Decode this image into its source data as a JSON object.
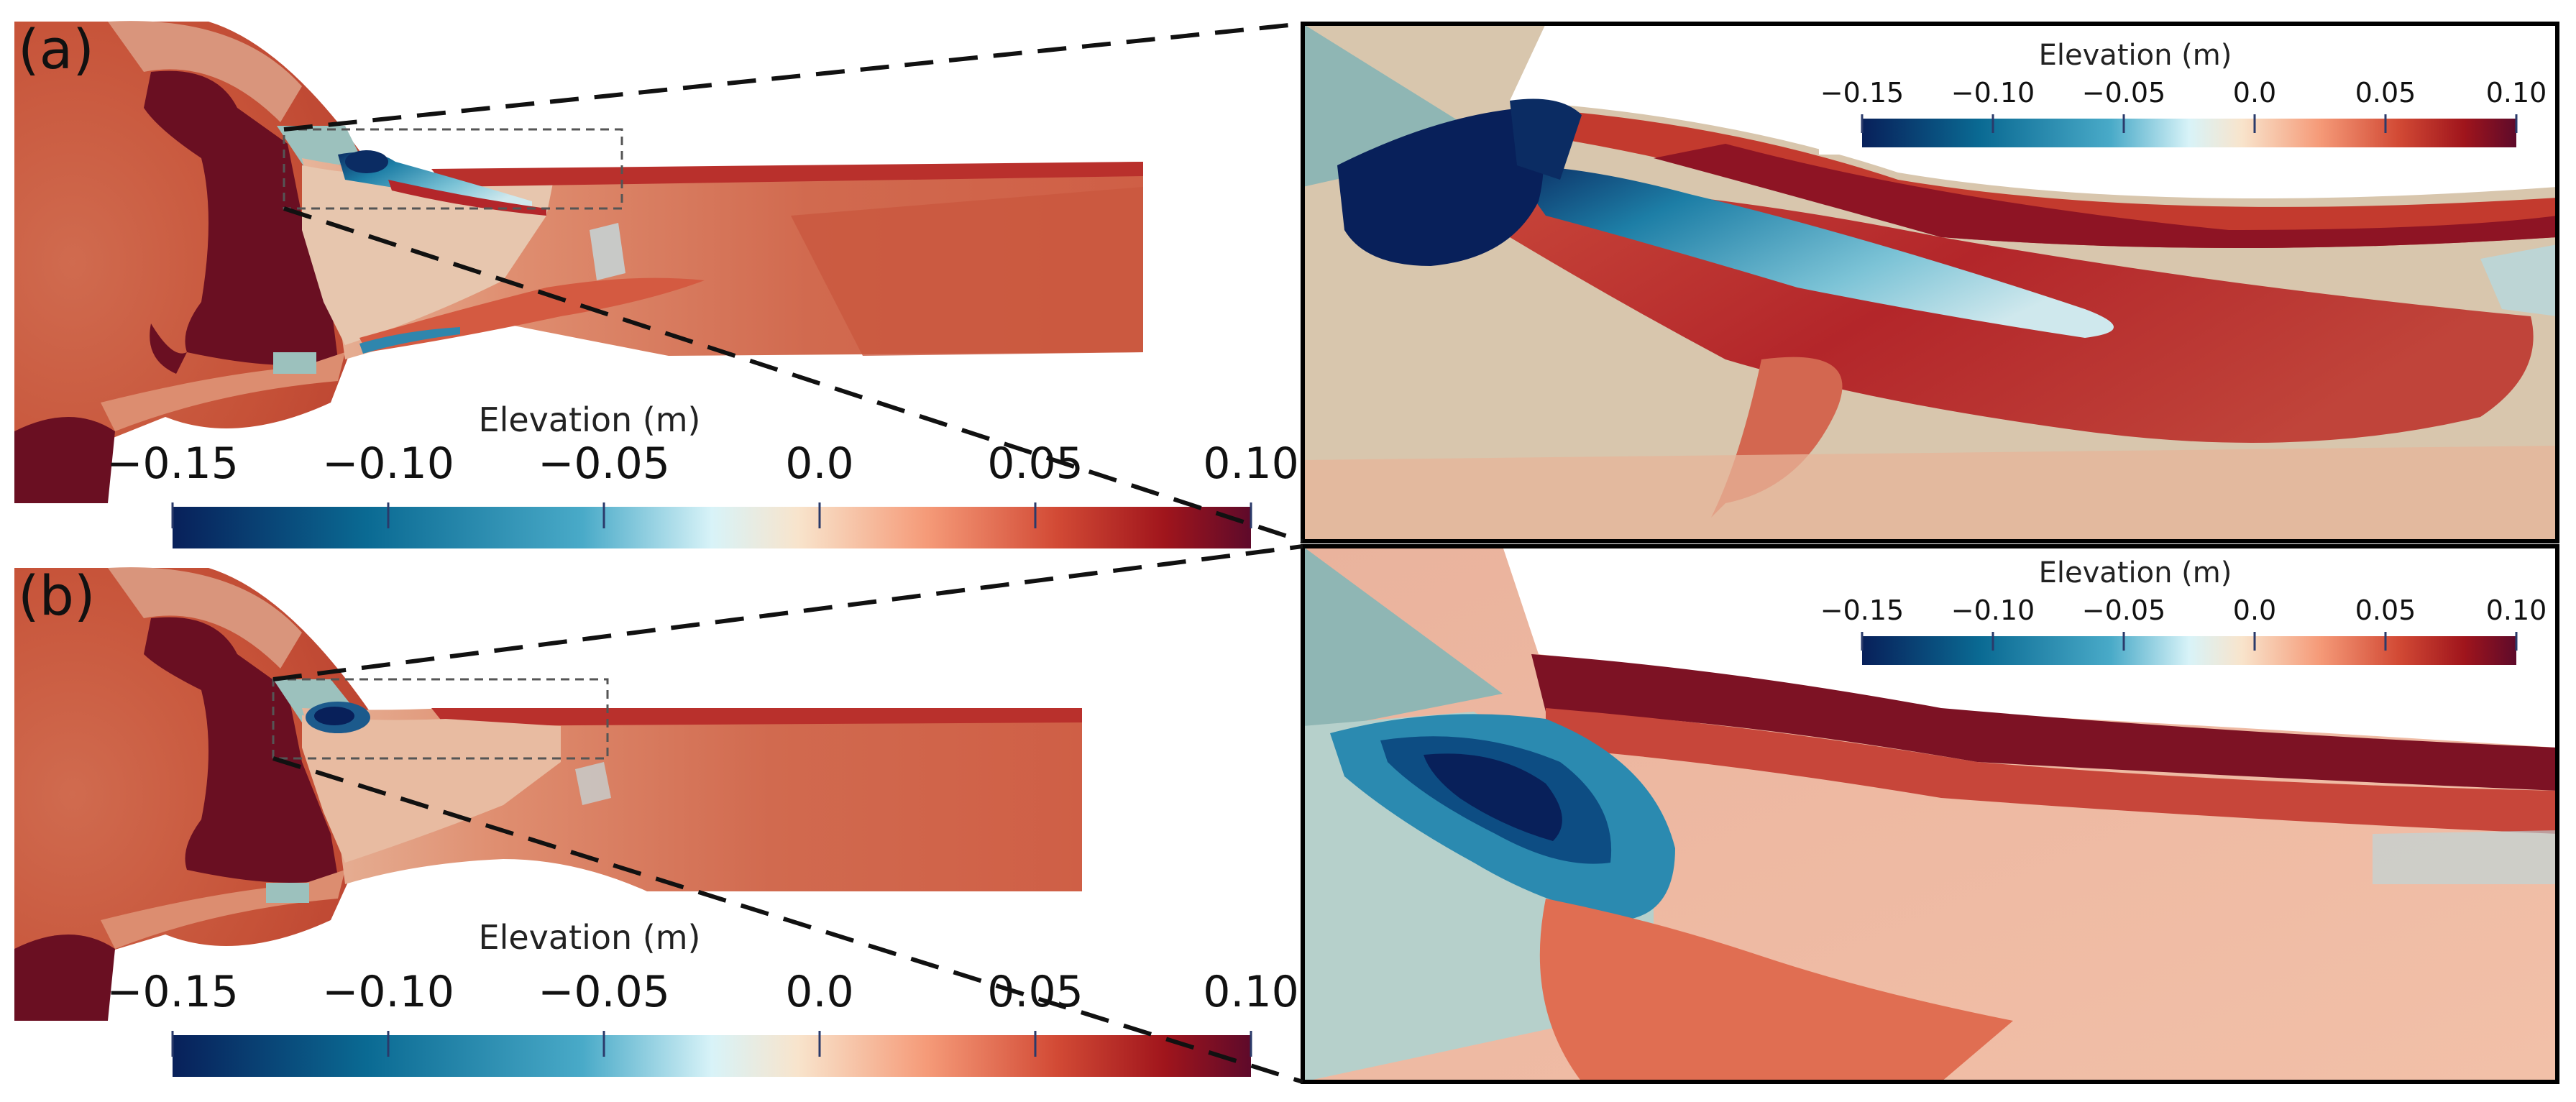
{
  "figure": {
    "panels": [
      {
        "id": "a",
        "label": "(a)"
      },
      {
        "id": "b",
        "label": "(b)"
      }
    ],
    "colorbar": {
      "title": "Elevation (m)",
      "ticks": [
        "−0.15",
        "−0.10",
        "−0.05",
        "0.0",
        "0.05",
        "0.10"
      ],
      "range": [
        -0.15,
        0.1
      ],
      "colormap": [
        "#08205a",
        "#0a6a93",
        "#49aac8",
        "#d8f3f8",
        "#f8e4cc",
        "#f59a78",
        "#d24a35",
        "#a0151c",
        "#5e0a2a"
      ]
    },
    "colors": {
      "land_dark": "#6a0f22",
      "land_mid": "#c04a33",
      "land_light": "#e8a287",
      "channel": "#cd5b41",
      "teal_wedge": "#8fb6b4",
      "beige": "#d8c6ad",
      "frame": "#000000"
    }
  }
}
